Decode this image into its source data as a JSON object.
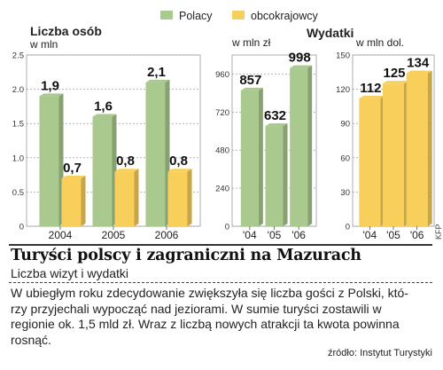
{
  "legend": {
    "series1": "Polacy",
    "series2": "obcokrajowcy",
    "color1": "#a9c98e",
    "color2": "#f7cf5a"
  },
  "chart_data": [
    {
      "type": "bar",
      "title": "Liczba osób",
      "unit": "w mln",
      "categories": [
        "2004",
        "2005",
        "2006"
      ],
      "series": [
        {
          "name": "Polacy",
          "values": [
            1.9,
            1.6,
            2.1
          ]
        },
        {
          "name": "obcokrajowcy",
          "values": [
            0.7,
            0.8,
            0.8
          ]
        }
      ],
      "value_labels": [
        [
          "1,9",
          "1,6",
          "2,1"
        ],
        [
          "0,7",
          "0,8",
          "0,8"
        ]
      ],
      "yticks": [
        "0",
        "0.5",
        "1.0",
        "1.5",
        "2.0",
        "2.5"
      ],
      "ylim": [
        0,
        2.5
      ],
      "grid": true
    },
    {
      "type": "bar",
      "unit": "w mln zł",
      "categories": [
        "'04",
        "'05",
        "'06"
      ],
      "series": [
        {
          "name": "Polacy",
          "values": [
            857,
            632,
            998
          ]
        }
      ],
      "value_labels": [
        [
          "857",
          "632",
          "998"
        ]
      ],
      "yticks": [
        "0",
        "240",
        "480",
        "720",
        "960"
      ],
      "ylim": [
        0,
        1080
      ],
      "grid": true
    },
    {
      "type": "bar",
      "unit": "w mln dol.",
      "categories": [
        "'04",
        "'05",
        "'06"
      ],
      "series": [
        {
          "name": "obcokrajowcy",
          "values": [
            112,
            125,
            134
          ]
        }
      ],
      "value_labels": [
        [
          "112",
          "125",
          "134"
        ]
      ],
      "yticks": [
        "0",
        "30",
        "60",
        "90",
        "120",
        "150"
      ],
      "ylim": [
        0,
        150
      ],
      "grid": true
    }
  ],
  "wydatki_label": "Wydatki",
  "headline": "Turyści polscy i zagraniczni na Mazurach",
  "subheadline": "Liczba wizyt i wydatki",
  "body_lines": [
    "W ubiegłym roku zdecydowanie zwiększyła się liczba gości z Polski, któ-",
    "rzy przyjechali wypocząć nad jeziorami. W sumie turyści zostawili w",
    "regionie ok. 1,5 mld zł. Wraz z liczbą nowych atrakcji ta kwota powinna",
    "rosnąć."
  ],
  "source": "źródło: Instytut Turystyki",
  "credit": "KFP"
}
